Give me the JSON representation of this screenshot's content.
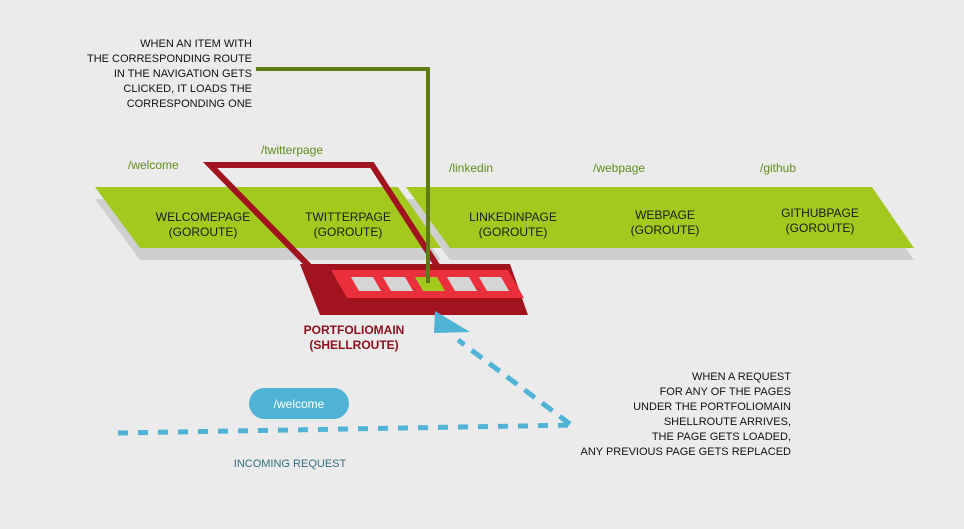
{
  "colors": {
    "background": "#ebebeb",
    "page_fill": "#a3c91e",
    "page_shadow": "#cfcfcf",
    "route_text": "#5f8d1c",
    "connector": "#5d7a14",
    "shell_dark": "#a0131f",
    "shell_bright": "#e9303c",
    "shell_slot": "#d5d5d5",
    "shell_active_slot": "#a3c91e",
    "shell_label": "#8d0f1b",
    "request": "#4fb3d6",
    "incoming_label": "#2f6e7f"
  },
  "top_note": {
    "lines": [
      "WHEN AN ITEM WITH",
      "THE CORRESPONDING ROUTE",
      "IN THE NAVIGATION GETS",
      "CLICKED, IT LOADS THE",
      "CORRESPONDING ONE"
    ]
  },
  "pages": [
    {
      "route": "/welcome",
      "name": "WELCOMEPAGE",
      "type": "(GOROUTE)"
    },
    {
      "route": "/twitterpage",
      "name": "TWITTERPAGE",
      "type": "(GOROUTE)"
    },
    {
      "route": "/linkedin",
      "name": "LINKEDINPAGE",
      "type": "(GOROUTE)"
    },
    {
      "route": "/webpage",
      "name": "WEBPAGE",
      "type": "(GOROUTE)"
    },
    {
      "route": "/github",
      "name": "GITHUBPAGE",
      "type": "(GOROUTE)"
    }
  ],
  "shell": {
    "name": "PORTFOLIOMAIN",
    "type": "(SHELLROUTE)"
  },
  "request": {
    "route": "/welcome",
    "label": "INCOMING REQUEST"
  },
  "bottom_note": {
    "lines": [
      "WHEN A REQUEST",
      "FOR ANY OF THE PAGES",
      "UNDER THE PORTFOLIOMAIN",
      "SHELLROUTE ARRIVES,",
      "THE PAGE GETS LOADED,",
      "ANY PREVIOUS PAGE GETS REPLACED"
    ]
  }
}
